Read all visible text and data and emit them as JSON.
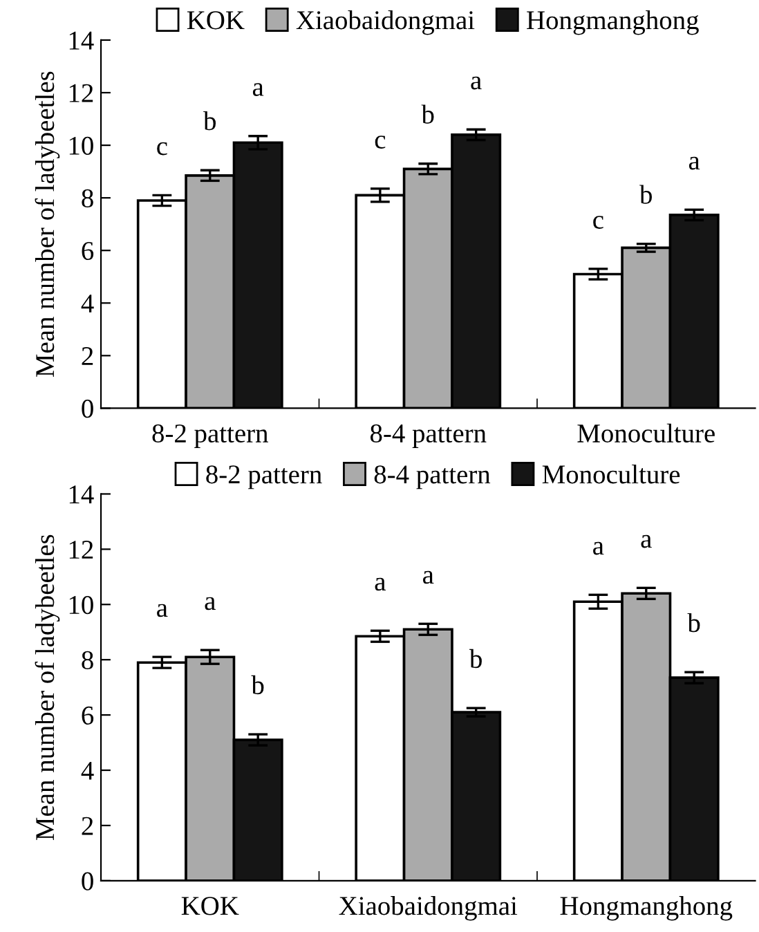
{
  "chart_data": [
    {
      "type": "bar",
      "ylabel": "Mean number of ladybeetles",
      "categories": [
        "8-2 pattern",
        "8-4 pattern",
        "Monoculture"
      ],
      "series": [
        {
          "name": "KOK",
          "color": "#ffffff",
          "values": [
            7.9,
            8.1,
            5.1
          ],
          "errors": [
            0.2,
            0.25,
            0.2
          ]
        },
        {
          "name": "Xiaobaidongmai",
          "color": "#aaaaaa",
          "values": [
            8.85,
            9.1,
            6.1
          ],
          "errors": [
            0.2,
            0.2,
            0.15
          ]
        },
        {
          "name": "Hongmanghong",
          "color": "#151515",
          "values": [
            10.1,
            10.4,
            7.35
          ],
          "errors": [
            0.25,
            0.2,
            0.2
          ]
        }
      ],
      "ylim": [
        0,
        14
      ],
      "yticks": [
        0,
        2,
        4,
        6,
        8,
        10,
        12,
        14
      ],
      "legend": "top",
      "grid": false,
      "annotations": [
        "c",
        "b",
        "a",
        "c",
        "b",
        "a",
        "c",
        "b",
        "a"
      ]
    },
    {
      "type": "bar",
      "ylabel": "Mean number of ladybeetles",
      "categories": [
        "KOK",
        "Xiaobaidongmai",
        "Hongmanghong"
      ],
      "series": [
        {
          "name": "8-2 pattern",
          "color": "#ffffff",
          "values": [
            7.9,
            8.85,
            10.1
          ],
          "errors": [
            0.2,
            0.2,
            0.25
          ]
        },
        {
          "name": "8-4 pattern",
          "color": "#aaaaaa",
          "values": [
            8.1,
            9.1,
            10.4
          ],
          "errors": [
            0.25,
            0.2,
            0.2
          ]
        },
        {
          "name": "Monoculture",
          "color": "#151515",
          "values": [
            5.1,
            6.1,
            7.35
          ],
          "errors": [
            0.2,
            0.15,
            0.2
          ]
        }
      ],
      "ylim": [
        0,
        14
      ],
      "yticks": [
        0,
        2,
        4,
        6,
        8,
        10,
        12,
        14
      ],
      "legend": "top",
      "grid": false,
      "annotations": [
        "a",
        "a",
        "b",
        "a",
        "a",
        "b",
        "a",
        "a",
        "b"
      ]
    }
  ]
}
